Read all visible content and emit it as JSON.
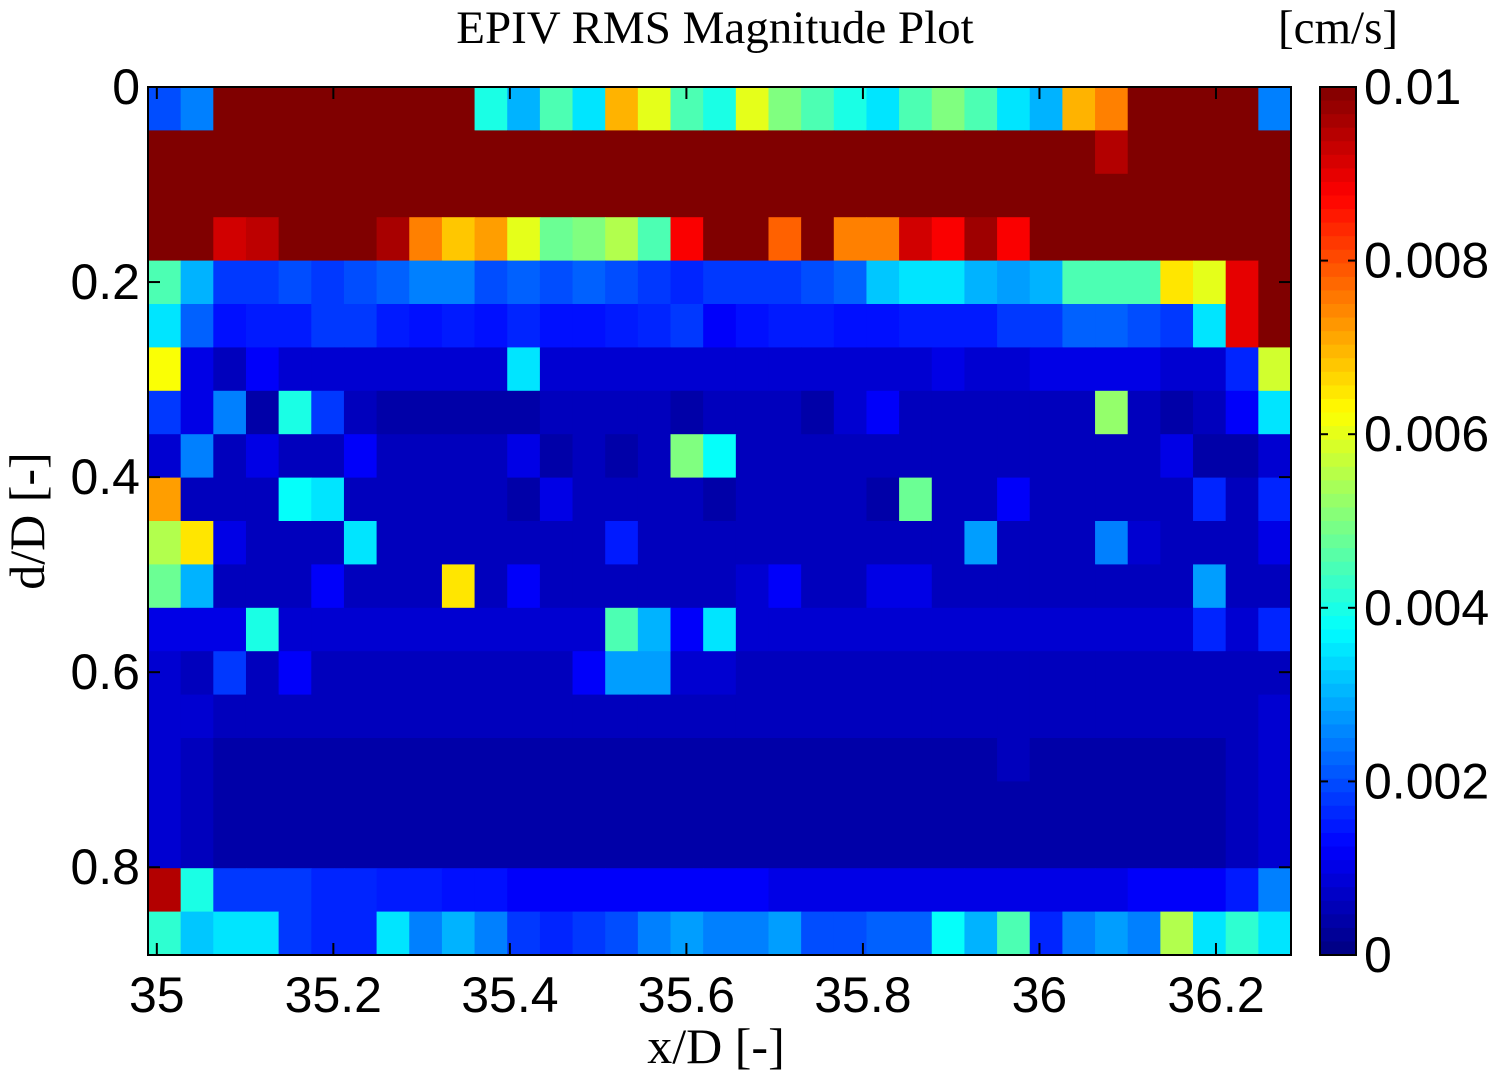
{
  "chart_data": {
    "type": "heatmap",
    "title": "EPIV RMS Magnitude Plot",
    "colorbar_unit": "[cm/s]",
    "xlabel": "x/D [-]",
    "ylabel": "d/D [-]",
    "x_range": [
      34.99,
      36.285
    ],
    "y_range": [
      0,
      0.89
    ],
    "y_direction": "down",
    "x_ticks": [
      35,
      35.2,
      35.4,
      35.6,
      35.8,
      36,
      36.2
    ],
    "x_tick_labels": [
      "35",
      "35.2",
      "35.4",
      "35.6",
      "35.8",
      "36",
      "36.2"
    ],
    "y_ticks": [
      0,
      0.2,
      0.4,
      0.6,
      0.8
    ],
    "y_tick_labels": [
      "0",
      "0.2",
      "0.4",
      "0.6",
      "0.8"
    ],
    "colorbar_ticks": [
      0,
      0.002,
      0.004,
      0.006,
      0.008,
      0.01
    ],
    "colorbar_tick_labels": [
      "0",
      "0.002",
      "0.004",
      "0.006",
      "0.008",
      "0.01"
    ],
    "colormap": "jet",
    "clim": [
      0,
      0.01
    ],
    "grid": false,
    "n_cols": 35,
    "n_rows": 20,
    "z": [
      [
        0.002,
        0.0025,
        0.01,
        0.01,
        0.01,
        0.01,
        0.01,
        0.01,
        0.01,
        0.01,
        0.004,
        0.003,
        0.0045,
        0.0035,
        0.007,
        0.006,
        0.0045,
        0.004,
        0.006,
        0.005,
        0.0045,
        0.004,
        0.0035,
        0.0045,
        0.005,
        0.0045,
        0.0035,
        0.003,
        0.007,
        0.0075,
        0.01,
        0.01,
        0.01,
        0.01,
        0.0025
      ],
      [
        0.01,
        0.01,
        0.01,
        0.01,
        0.01,
        0.01,
        0.01,
        0.01,
        0.01,
        0.01,
        0.01,
        0.01,
        0.01,
        0.01,
        0.01,
        0.01,
        0.01,
        0.01,
        0.01,
        0.01,
        0.01,
        0.01,
        0.01,
        0.01,
        0.01,
        0.01,
        0.01,
        0.01,
        0.01,
        0.0095,
        0.01,
        0.01,
        0.01,
        0.01,
        0.01
      ],
      [
        0.01,
        0.01,
        0.01,
        0.01,
        0.01,
        0.01,
        0.01,
        0.01,
        0.01,
        0.01,
        0.01,
        0.01,
        0.01,
        0.01,
        0.01,
        0.01,
        0.01,
        0.01,
        0.01,
        0.01,
        0.01,
        0.01,
        0.01,
        0.01,
        0.01,
        0.01,
        0.01,
        0.01,
        0.01,
        0.01,
        0.01,
        0.01,
        0.01,
        0.01,
        0.01
      ],
      [
        0.01,
        0.01,
        0.0092,
        0.0094,
        0.01,
        0.01,
        0.01,
        0.0096,
        0.0075,
        0.0068,
        0.0072,
        0.006,
        0.0048,
        0.005,
        0.0055,
        0.0045,
        0.0088,
        0.01,
        0.01,
        0.0078,
        0.01,
        0.0075,
        0.0075,
        0.0092,
        0.0088,
        0.0097,
        0.0088,
        0.01,
        0.01,
        0.01,
        0.01,
        0.01,
        0.01,
        0.01,
        0.01
      ],
      [
        0.0045,
        0.003,
        0.0018,
        0.0018,
        0.002,
        0.0018,
        0.002,
        0.0022,
        0.0025,
        0.0025,
        0.002,
        0.0022,
        0.002,
        0.0022,
        0.002,
        0.0018,
        0.0016,
        0.0018,
        0.0018,
        0.0018,
        0.002,
        0.0022,
        0.0032,
        0.0035,
        0.0035,
        0.003,
        0.0028,
        0.003,
        0.0045,
        0.0045,
        0.0045,
        0.0065,
        0.006,
        0.009,
        0.01
      ],
      [
        0.0035,
        0.0022,
        0.0014,
        0.0015,
        0.0015,
        0.0018,
        0.0018,
        0.0015,
        0.0014,
        0.0015,
        0.0014,
        0.0016,
        0.0014,
        0.0014,
        0.0015,
        0.0016,
        0.0018,
        0.0012,
        0.0014,
        0.0015,
        0.0015,
        0.0014,
        0.0014,
        0.0015,
        0.0015,
        0.0015,
        0.0018,
        0.0018,
        0.0022,
        0.0022,
        0.002,
        0.0018,
        0.0035,
        0.009,
        0.01
      ],
      [
        0.0062,
        0.001,
        0.0006,
        0.0012,
        0.0008,
        0.0008,
        0.0008,
        0.0008,
        0.0008,
        0.0008,
        0.0008,
        0.0035,
        0.0008,
        0.0008,
        0.0008,
        0.0008,
        0.0008,
        0.0008,
        0.0008,
        0.0008,
        0.0008,
        0.0008,
        0.0008,
        0.0008,
        0.001,
        0.0008,
        0.0008,
        0.001,
        0.001,
        0.001,
        0.001,
        0.0008,
        0.0008,
        0.0016,
        0.0058
      ],
      [
        0.0018,
        0.001,
        0.0025,
        0.0004,
        0.004,
        0.0018,
        0.0006,
        0.0004,
        0.0004,
        0.0004,
        0.0004,
        0.0004,
        0.0006,
        0.0006,
        0.0006,
        0.0006,
        0.0004,
        0.0006,
        0.0006,
        0.0006,
        0.0004,
        0.0008,
        0.0012,
        0.0006,
        0.0006,
        0.0006,
        0.0006,
        0.0006,
        0.0006,
        0.0052,
        0.0006,
        0.0004,
        0.0006,
        0.0012,
        0.0035
      ],
      [
        0.0008,
        0.0025,
        0.0006,
        0.001,
        0.0006,
        0.0006,
        0.0012,
        0.0006,
        0.0006,
        0.0006,
        0.0006,
        0.001,
        0.0004,
        0.0006,
        0.0004,
        0.0006,
        0.005,
        0.0038,
        0.0006,
        0.0006,
        0.0006,
        0.0006,
        0.0006,
        0.0006,
        0.0006,
        0.0006,
        0.0006,
        0.0006,
        0.0006,
        0.0006,
        0.0006,
        0.001,
        0.0004,
        0.0004,
        0.0008
      ],
      [
        0.0072,
        0.0006,
        0.0006,
        0.0006,
        0.0038,
        0.0035,
        0.0006,
        0.0006,
        0.0006,
        0.0006,
        0.0006,
        0.0004,
        0.001,
        0.0006,
        0.0006,
        0.0006,
        0.0006,
        0.0004,
        0.0006,
        0.0006,
        0.0006,
        0.0006,
        0.0004,
        0.0048,
        0.0006,
        0.0006,
        0.0012,
        0.0006,
        0.0006,
        0.0006,
        0.0006,
        0.0006,
        0.0016,
        0.0006,
        0.0016
      ],
      [
        0.0055,
        0.0065,
        0.001,
        0.0006,
        0.0006,
        0.0006,
        0.0035,
        0.0006,
        0.0006,
        0.0006,
        0.0006,
        0.0006,
        0.0006,
        0.0006,
        0.0015,
        0.0006,
        0.0006,
        0.0006,
        0.0006,
        0.0006,
        0.0006,
        0.0006,
        0.0006,
        0.0006,
        0.0006,
        0.0028,
        0.0006,
        0.0006,
        0.0006,
        0.0025,
        0.0008,
        0.0006,
        0.0006,
        0.0006,
        0.001
      ],
      [
        0.0048,
        0.003,
        0.0006,
        0.0006,
        0.0006,
        0.0012,
        0.0006,
        0.0006,
        0.0006,
        0.0065,
        0.0006,
        0.0012,
        0.0006,
        0.0006,
        0.0006,
        0.0006,
        0.0006,
        0.0006,
        0.0008,
        0.0012,
        0.0006,
        0.0006,
        0.001,
        0.001,
        0.0006,
        0.0006,
        0.0006,
        0.0006,
        0.0006,
        0.0006,
        0.0006,
        0.0006,
        0.0028,
        0.0006,
        0.0006
      ],
      [
        0.001,
        0.001,
        0.001,
        0.004,
        0.0008,
        0.0008,
        0.0008,
        0.0008,
        0.0008,
        0.0008,
        0.0008,
        0.0008,
        0.0008,
        0.0008,
        0.0045,
        0.003,
        0.0012,
        0.0035,
        0.0008,
        0.0008,
        0.0008,
        0.0008,
        0.0008,
        0.0008,
        0.0008,
        0.0008,
        0.0008,
        0.0008,
        0.0008,
        0.0008,
        0.0008,
        0.0008,
        0.0016,
        0.0008,
        0.0016
      ],
      [
        0.0008,
        0.0006,
        0.0018,
        0.0006,
        0.0012,
        0.0006,
        0.0006,
        0.0006,
        0.0006,
        0.0006,
        0.0006,
        0.0006,
        0.0006,
        0.0012,
        0.0028,
        0.0028,
        0.0008,
        0.0008,
        0.0006,
        0.0006,
        0.0006,
        0.0006,
        0.0006,
        0.0006,
        0.0006,
        0.0006,
        0.0006,
        0.0006,
        0.0006,
        0.0006,
        0.0006,
        0.0006,
        0.0006,
        0.0006,
        0.0006
      ],
      [
        0.0008,
        0.0008,
        0.0006,
        0.0006,
        0.0006,
        0.0006,
        0.0006,
        0.0006,
        0.0006,
        0.0006,
        0.0006,
        0.0006,
        0.0006,
        0.0006,
        0.0006,
        0.0006,
        0.0006,
        0.0006,
        0.0006,
        0.0006,
        0.0006,
        0.0006,
        0.0006,
        0.0006,
        0.0006,
        0.0006,
        0.0006,
        0.0006,
        0.0006,
        0.0006,
        0.0006,
        0.0006,
        0.0006,
        0.0006,
        0.0008
      ],
      [
        0.0008,
        0.0006,
        0.0004,
        0.0004,
        0.0004,
        0.0004,
        0.0004,
        0.0004,
        0.0004,
        0.0004,
        0.0004,
        0.0004,
        0.0004,
        0.0004,
        0.0004,
        0.0004,
        0.0004,
        0.0004,
        0.0004,
        0.0004,
        0.0004,
        0.0004,
        0.0004,
        0.0004,
        0.0004,
        0.0004,
        0.0006,
        0.0004,
        0.0004,
        0.0004,
        0.0004,
        0.0004,
        0.0004,
        0.0006,
        0.0008
      ],
      [
        0.0008,
        0.0006,
        0.0004,
        0.0004,
        0.0004,
        0.0004,
        0.0004,
        0.0004,
        0.0004,
        0.0004,
        0.0004,
        0.0004,
        0.0004,
        0.0004,
        0.0004,
        0.0004,
        0.0004,
        0.0004,
        0.0004,
        0.0004,
        0.0004,
        0.0004,
        0.0004,
        0.0004,
        0.0004,
        0.0004,
        0.0004,
        0.0004,
        0.0004,
        0.0004,
        0.0004,
        0.0004,
        0.0004,
        0.0006,
        0.0008
      ],
      [
        0.0008,
        0.0006,
        0.0004,
        0.0004,
        0.0004,
        0.0004,
        0.0004,
        0.0004,
        0.0004,
        0.0004,
        0.0004,
        0.0004,
        0.0004,
        0.0004,
        0.0004,
        0.0004,
        0.0004,
        0.0004,
        0.0004,
        0.0004,
        0.0004,
        0.0004,
        0.0004,
        0.0004,
        0.0004,
        0.0004,
        0.0004,
        0.0004,
        0.0004,
        0.0004,
        0.0004,
        0.0004,
        0.0004,
        0.0006,
        0.0008
      ],
      [
        0.0095,
        0.004,
        0.0018,
        0.0018,
        0.0018,
        0.0016,
        0.0016,
        0.0015,
        0.0015,
        0.0014,
        0.0014,
        0.0012,
        0.0012,
        0.0012,
        0.0012,
        0.0012,
        0.0012,
        0.0012,
        0.0012,
        0.001,
        0.001,
        0.001,
        0.001,
        0.001,
        0.001,
        0.001,
        0.001,
        0.001,
        0.001,
        0.001,
        0.0012,
        0.0012,
        0.0012,
        0.0015,
        0.0025
      ],
      [
        0.0042,
        0.0032,
        0.0035,
        0.0035,
        0.0018,
        0.0016,
        0.0016,
        0.0035,
        0.0025,
        0.003,
        0.0025,
        0.0018,
        0.0016,
        0.0018,
        0.002,
        0.0025,
        0.0028,
        0.0025,
        0.0025,
        0.0028,
        0.002,
        0.002,
        0.0022,
        0.0022,
        0.0038,
        0.003,
        0.0045,
        0.0016,
        0.0025,
        0.0028,
        0.0025,
        0.0055,
        0.0035,
        0.0042,
        0.0035
      ]
    ]
  }
}
